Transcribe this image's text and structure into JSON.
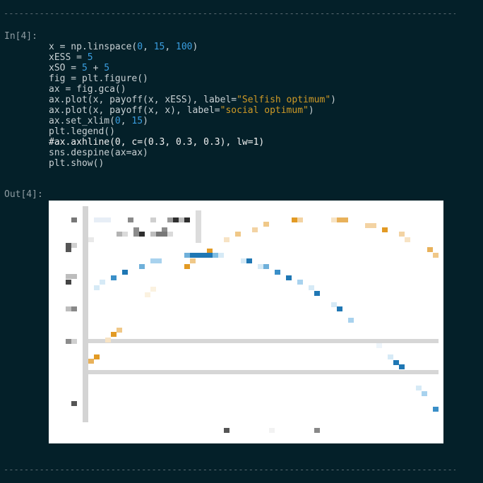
{
  "separator_text": "----------------------------------------------------------------------------------------------------",
  "input_cell": {
    "prompt": "In[4]:",
    "lines": [
      [
        {
          "t": "x = np.linspace(",
          "c": "p"
        },
        {
          "t": "0",
          "c": "n"
        },
        {
          "t": ", ",
          "c": "p"
        },
        {
          "t": "15",
          "c": "n"
        },
        {
          "t": ", ",
          "c": "p"
        },
        {
          "t": "100",
          "c": "n"
        },
        {
          "t": ")",
          "c": "p"
        }
      ],
      [
        {
          "t": "xESS = ",
          "c": "p"
        },
        {
          "t": "5",
          "c": "n"
        }
      ],
      [
        {
          "t": "xSO = ",
          "c": "p"
        },
        {
          "t": "5",
          "c": "n"
        },
        {
          "t": " + ",
          "c": "p"
        },
        {
          "t": "5",
          "c": "n"
        }
      ],
      [
        {
          "t": "fig = plt.figure()",
          "c": "p"
        }
      ],
      [
        {
          "t": "ax = fig.gca()",
          "c": "p"
        }
      ],
      [
        {
          "t": "ax.plot(x, payoff(x, xESS), label=",
          "c": "p"
        },
        {
          "t": "\"Selfish optimum\"",
          "c": "s"
        },
        {
          "t": ")",
          "c": "p"
        }
      ],
      [
        {
          "t": "ax.plot(x, payoff(x, x), label=",
          "c": "p"
        },
        {
          "t": "\"social optimum\"",
          "c": "s"
        },
        {
          "t": ")",
          "c": "p"
        }
      ],
      [
        {
          "t": "ax.set_xlim(",
          "c": "p"
        },
        {
          "t": "0",
          "c": "n"
        },
        {
          "t": ", ",
          "c": "p"
        },
        {
          "t": "15",
          "c": "n"
        },
        {
          "t": ")",
          "c": "p"
        }
      ],
      [
        {
          "t": "plt.legend()",
          "c": "p"
        }
      ],
      [
        {
          "t": "#ax.axhline(0, c=(0.3, 0.3, 0.3), lw=1)",
          "c": "c"
        }
      ],
      [
        {
          "t": "sns.despine(ax=ax)",
          "c": "p"
        }
      ],
      [
        {
          "t": "plt.show()",
          "c": "p"
        }
      ]
    ]
  },
  "output_cell": {
    "prompt": "Out[4]:"
  },
  "colors": {
    "background": "#042029",
    "number": "#3a9ee0",
    "string": "#cf9a26",
    "orange_series": "#e29a24",
    "blue_series": "#1f77b4"
  }
}
